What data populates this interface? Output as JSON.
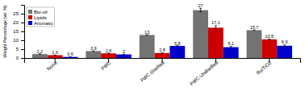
{
  "chart_data": {
    "type": "bar",
    "categories": [
      "None",
      "Pd/C",
      "Pd/C-Distilled",
      "Pd/C-Undistilled",
      "Ru/TiO2"
    ],
    "series": [
      {
        "name": "Bio-oil",
        "color": "#737373",
        "values": [
          2.2,
          3.9,
          13,
          27,
          15.7
        ],
        "errors": [
          0,
          0,
          0,
          1.0,
          0
        ]
      },
      {
        "name": "Lipids",
        "color": "#cc0000",
        "values": [
          1.6,
          2.6,
          2.8,
          17.1,
          10.5
        ],
        "errors": [
          0,
          0,
          0,
          1.2,
          0
        ]
      },
      {
        "name": "Aromatic",
        "color": "#0000cc",
        "values": [
          0.6,
          2,
          6.8,
          6.1,
          6.9
        ],
        "errors": [
          0,
          0,
          0,
          0.5,
          0.5
        ]
      }
    ],
    "ylabel": "Weight Percentage (wt. %)",
    "ylim": [
      0,
      30
    ],
    "yticks": [
      0,
      5,
      10,
      15,
      20,
      25
    ],
    "grid": false,
    "legend": "upper left",
    "data_labels": true
  }
}
